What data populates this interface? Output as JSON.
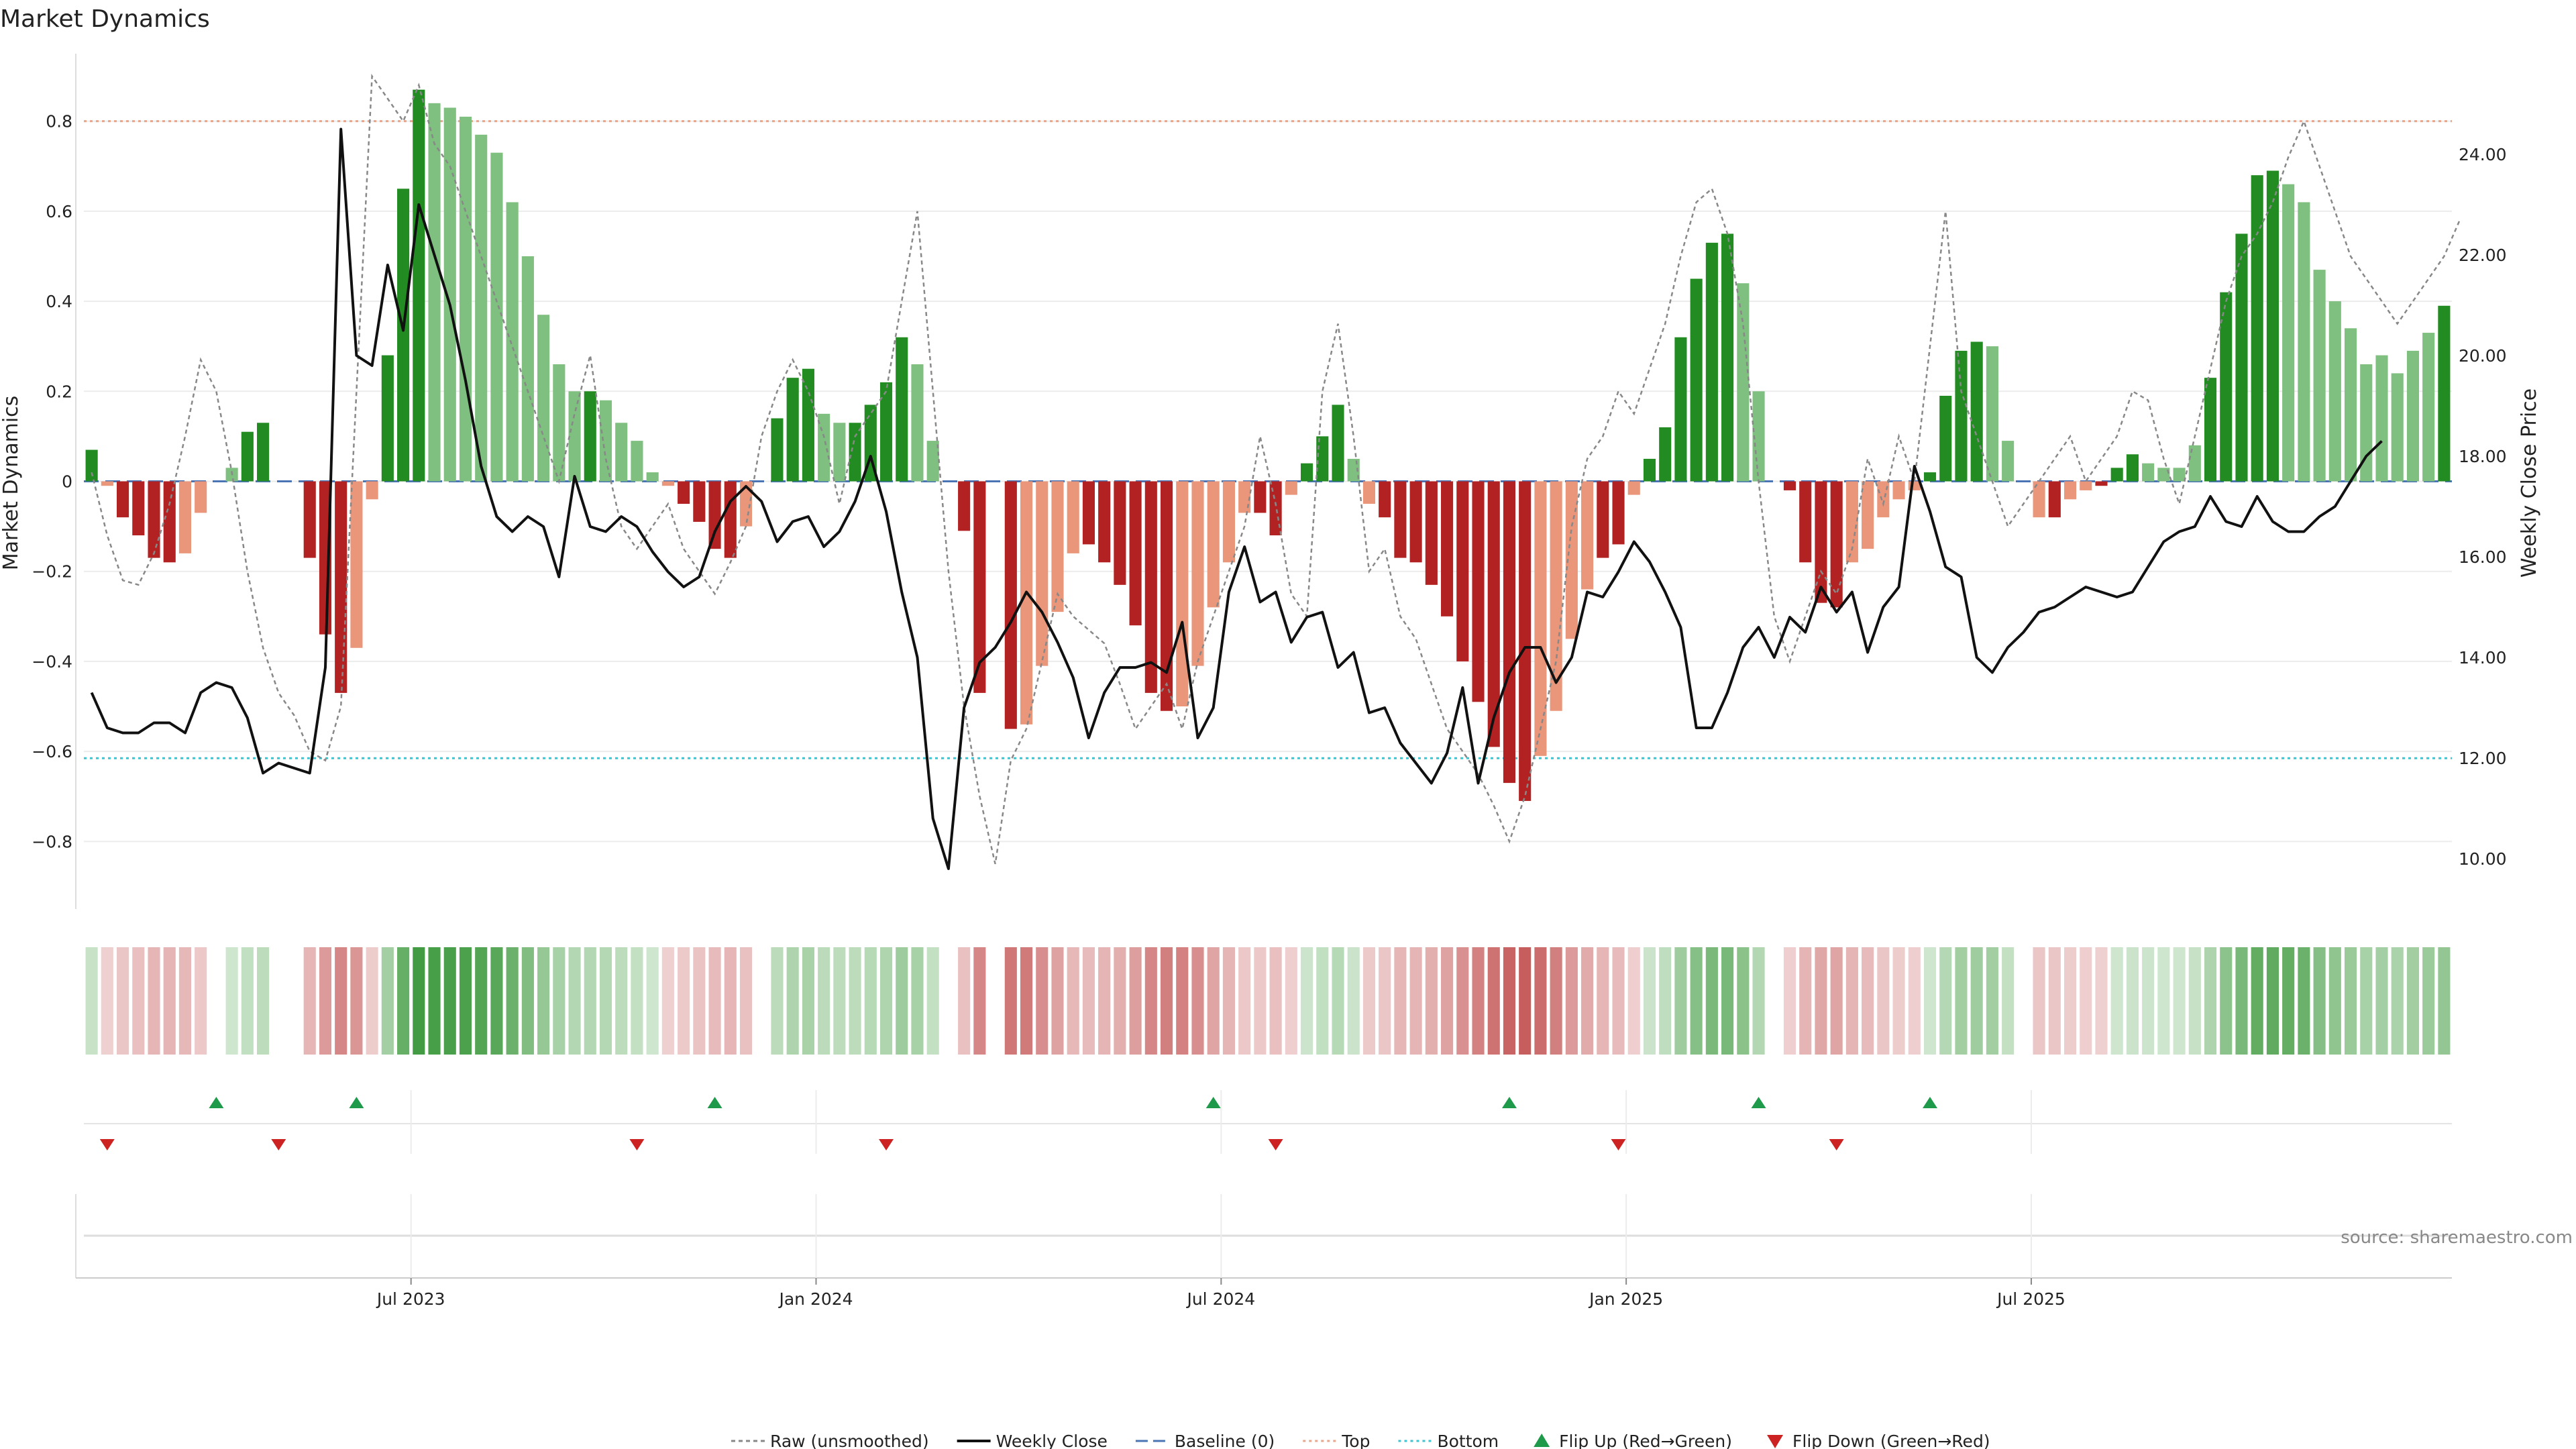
{
  "chart_data": {
    "type": "bar",
    "title": "Market Dynamics",
    "ylabel_left": "Market Dynamics",
    "ylabel_right": "Weekly Close Price",
    "source": "source: sharemaestro.com",
    "ylim_left": [
      -0.95,
      0.95
    ],
    "ylim_right": [
      9.0,
      26.0
    ],
    "yticks_left": [
      {
        "value": 0.8,
        "label": "0.8"
      },
      {
        "value": 0.6,
        "label": "0.6"
      },
      {
        "value": 0.4,
        "label": "0.4"
      },
      {
        "value": 0.2,
        "label": "0.2"
      },
      {
        "value": 0,
        "label": "0"
      },
      {
        "value": -0.2,
        "label": "−0.2"
      },
      {
        "value": -0.4,
        "label": "−0.4"
      },
      {
        "value": -0.6,
        "label": "−0.6"
      },
      {
        "value": -0.8,
        "label": "−0.8"
      }
    ],
    "yticks_right": [
      {
        "value": 24,
        "label": "24.00"
      },
      {
        "value": 22,
        "label": "22.00"
      },
      {
        "value": 20,
        "label": "20.00"
      },
      {
        "value": 18,
        "label": "18.00"
      },
      {
        "value": 16,
        "label": "16.00"
      },
      {
        "value": 14,
        "label": "14.00"
      },
      {
        "value": 12,
        "label": "12.00"
      },
      {
        "value": 10,
        "label": "10.00"
      }
    ],
    "xticks": [
      {
        "week": 21,
        "label": "Jul 2023"
      },
      {
        "week": 47,
        "label": "Jan 2024"
      },
      {
        "week": 73,
        "label": "Jul 2024"
      },
      {
        "week": 99,
        "label": "Jan 2025"
      },
      {
        "week": 125,
        "label": "Jul 2025"
      }
    ],
    "x_start": "2023-02",
    "x_end": "2025-10",
    "top_line": 0.8,
    "bottom_line": -0.615,
    "baseline": 0,
    "grid": true,
    "legend_position": "bottom",
    "legend": [
      {
        "key": "raw",
        "label": "Raw (unsmoothed)"
      },
      {
        "key": "close",
        "label": "Weekly Close"
      },
      {
        "key": "baseline",
        "label": "Baseline (0)"
      },
      {
        "key": "top",
        "label": "Top"
      },
      {
        "key": "bottom",
        "label": "Bottom"
      },
      {
        "key": "flip_up",
        "label": "Flip Up (Red→Green)"
      },
      {
        "key": "flip_down",
        "label": "Flip Down (Green→Red)"
      }
    ],
    "colors": {
      "strong_green": "#228b22",
      "light_green": "#7fbf7f",
      "strong_red": "#b22222",
      "light_red": "#e9967a",
      "close": "#111111",
      "raw": "#888888",
      "baseline": "#4a74b4",
      "top": "#e8a68c",
      "bottom": "#3ec5cf",
      "flip_up": "#1e9a4a",
      "flip_down": "#cc2222"
    },
    "series": [
      {
        "name": "Market Dynamics",
        "values": [
          0.07,
          -0.01,
          -0.08,
          -0.12,
          -0.17,
          -0.18,
          -0.16,
          -0.07,
          0.0,
          0.03,
          0.11,
          0.13,
          0.0,
          0.0,
          -0.17,
          -0.34,
          -0.47,
          -0.37,
          -0.04,
          0.28,
          0.65,
          0.87,
          0.84,
          0.83,
          0.81,
          0.77,
          0.73,
          0.62,
          0.5,
          0.37,
          0.26,
          0.2,
          0.2,
          0.18,
          0.13,
          0.09,
          0.02,
          -0.01,
          -0.05,
          -0.09,
          -0.15,
          -0.17,
          -0.1,
          0.0,
          0.14,
          0.23,
          0.25,
          0.15,
          0.13,
          0.13,
          0.17,
          0.22,
          0.32,
          0.26,
          0.09,
          0.0,
          -0.11,
          -0.47,
          0.0,
          -0.55,
          -0.54,
          -0.41,
          -0.29,
          -0.16,
          -0.14,
          -0.18,
          -0.23,
          -0.32,
          -0.47,
          -0.51,
          -0.5,
          -0.41,
          -0.28,
          -0.18,
          -0.07,
          -0.07,
          -0.12,
          -0.03,
          0.04,
          0.1,
          0.17,
          0.05,
          -0.05,
          -0.08,
          -0.17,
          -0.18,
          -0.23,
          -0.3,
          -0.4,
          -0.49,
          -0.59,
          -0.67,
          -0.71,
          -0.61,
          -0.51,
          -0.35,
          -0.24,
          -0.17,
          -0.14,
          -0.03,
          0.05,
          0.12,
          0.32,
          0.45,
          0.53,
          0.55,
          0.44,
          0.2,
          0.0,
          -0.02,
          -0.18,
          -0.27,
          -0.28,
          -0.18,
          -0.15,
          -0.08,
          -0.04,
          -0.02,
          0.02,
          0.19,
          0.29,
          0.31,
          0.3,
          0.09,
          0.0,
          -0.08,
          -0.08,
          -0.04,
          -0.02,
          -0.01,
          0.03,
          0.06,
          0.04,
          0.03,
          0.03,
          0.08,
          0.23,
          0.42,
          0.55,
          0.68,
          0.69,
          0.66,
          0.62,
          0.47,
          0.4,
          0.34,
          0.26,
          0.28,
          0.24,
          0.29,
          0.33,
          0.39
        ],
        "shade": [
          1,
          0,
          1,
          1,
          1,
          1,
          0,
          0,
          0,
          0,
          1,
          1,
          0,
          0,
          1,
          1,
          1,
          0,
          0,
          1,
          1,
          1,
          0,
          0,
          0,
          0,
          0,
          0,
          0,
          0,
          0,
          0,
          1,
          0,
          0,
          0,
          0,
          0,
          1,
          1,
          1,
          1,
          0,
          0,
          1,
          1,
          1,
          0,
          0,
          1,
          1,
          1,
          1,
          0,
          0,
          0,
          1,
          1,
          0,
          1,
          0,
          0,
          0,
          0,
          1,
          1,
          1,
          1,
          1,
          1,
          0,
          0,
          0,
          0,
          0,
          1,
          1,
          0,
          1,
          1,
          1,
          0,
          0,
          1,
          1,
          1,
          1,
          1,
          1,
          1,
          1,
          1,
          1,
          0,
          0,
          0,
          0,
          1,
          1,
          0,
          1,
          1,
          1,
          1,
          1,
          1,
          0,
          0,
          0,
          1,
          1,
          1,
          1,
          0,
          0,
          0,
          0,
          0,
          1,
          1,
          1,
          1,
          0,
          0,
          0,
          0,
          1,
          0,
          0,
          1,
          1,
          1,
          0,
          0,
          0,
          0,
          1,
          1,
          1,
          1,
          1,
          0,
          0,
          0,
          0,
          0,
          0,
          0,
          0,
          0,
          0,
          1,
          1,
          1
        ]
      },
      {
        "name": "Raw (unsmoothed)",
        "values": [
          0.02,
          -0.12,
          -0.22,
          -0.23,
          -0.16,
          -0.05,
          0.1,
          0.27,
          0.2,
          0.02,
          -0.2,
          -0.37,
          -0.47,
          -0.52,
          -0.6,
          -0.62,
          -0.5,
          0.2,
          0.9,
          0.85,
          0.8,
          0.88,
          0.75,
          0.7,
          0.6,
          0.5,
          0.4,
          0.3,
          0.2,
          0.1,
          0.0,
          0.15,
          0.28,
          0.05,
          -0.1,
          -0.15,
          -0.1,
          -0.05,
          -0.15,
          -0.2,
          -0.25,
          -0.18,
          -0.1,
          0.1,
          0.2,
          0.27,
          0.2,
          0.1,
          -0.05,
          0.1,
          0.15,
          0.2,
          0.4,
          0.6,
          0.2,
          -0.2,
          -0.5,
          -0.7,
          -0.85,
          -0.62,
          -0.55,
          -0.4,
          -0.25,
          -0.3,
          -0.33,
          -0.36,
          -0.45,
          -0.55,
          -0.5,
          -0.45,
          -0.55,
          -0.4,
          -0.3,
          -0.2,
          -0.1,
          0.1,
          -0.05,
          -0.25,
          -0.3,
          0.2,
          0.35,
          0.1,
          -0.2,
          -0.15,
          -0.3,
          -0.35,
          -0.45,
          -0.55,
          -0.6,
          -0.65,
          -0.72,
          -0.8,
          -0.7,
          -0.55,
          -0.4,
          -0.1,
          0.05,
          0.1,
          0.2,
          0.15,
          0.25,
          0.35,
          0.5,
          0.62,
          0.65,
          0.55,
          0.35,
          0.0,
          -0.3,
          -0.4,
          -0.3,
          -0.2,
          -0.25,
          -0.15,
          0.05,
          -0.05,
          0.1,
          0.0,
          0.3,
          0.6,
          0.2,
          0.1,
          0.0,
          -0.1,
          -0.05,
          0.0,
          0.05,
          0.1,
          0.0,
          0.05,
          0.1,
          0.2,
          0.18,
          0.05,
          -0.05,
          0.1,
          0.25,
          0.4,
          0.5,
          0.55,
          0.62,
          0.72,
          0.8,
          0.7,
          0.6,
          0.5,
          0.45,
          0.4,
          0.35,
          0.4,
          0.45,
          0.5,
          0.58
        ]
      },
      {
        "name": "Weekly Close",
        "values": [
          13.3,
          12.6,
          12.5,
          12.5,
          12.7,
          12.7,
          12.5,
          13.3,
          13.5,
          13.4,
          12.8,
          11.7,
          11.9,
          11.8,
          11.7,
          13.8,
          24.5,
          20.0,
          19.8,
          21.8,
          20.5,
          23.0,
          22.0,
          21.0,
          19.5,
          17.8,
          16.8,
          16.5,
          16.8,
          16.6,
          15.6,
          17.6,
          16.6,
          16.5,
          16.8,
          16.6,
          16.1,
          15.7,
          15.4,
          15.6,
          16.5,
          17.1,
          17.4,
          17.1,
          16.3,
          16.7,
          16.8,
          16.2,
          16.5,
          17.1,
          18.0,
          16.9,
          15.3,
          14.0,
          10.8,
          9.8,
          13.0,
          13.9,
          14.2,
          14.7,
          15.3,
          14.9,
          14.3,
          13.6,
          12.4,
          13.3,
          13.8,
          13.8,
          13.9,
          13.7,
          14.7,
          12.4,
          13.0,
          15.3,
          16.2,
          15.1,
          15.3,
          14.3,
          14.8,
          14.9,
          13.8,
          14.1,
          12.9,
          13.0,
          12.3,
          11.9,
          11.5,
          12.1,
          13.4,
          11.5,
          12.8,
          13.7,
          14.2,
          14.2,
          13.5,
          14.0,
          15.3,
          15.2,
          15.7,
          16.3,
          15.9,
          15.3,
          14.6,
          12.6,
          12.6,
          13.3,
          14.2,
          14.6,
          14.0,
          14.8,
          14.5,
          15.4,
          14.9,
          15.3,
          14.1,
          15.0,
          15.4,
          17.8,
          16.9,
          15.8,
          15.6,
          14.0,
          13.7,
          14.2,
          14.5,
          14.9,
          15.0,
          15.2,
          15.4,
          15.3,
          15.2,
          15.3,
          15.8,
          16.3,
          16.5,
          16.6,
          17.2,
          16.7,
          16.6,
          17.2,
          16.7,
          16.5,
          16.5,
          16.8,
          17.0,
          17.5,
          18.0,
          18.3
        ]
      }
    ],
    "flip_up_weeks": [
      8,
      17,
      40,
      72,
      91,
      107,
      118
    ],
    "flip_down_weeks": [
      1,
      12,
      35,
      51,
      76,
      98,
      112
    ]
  }
}
